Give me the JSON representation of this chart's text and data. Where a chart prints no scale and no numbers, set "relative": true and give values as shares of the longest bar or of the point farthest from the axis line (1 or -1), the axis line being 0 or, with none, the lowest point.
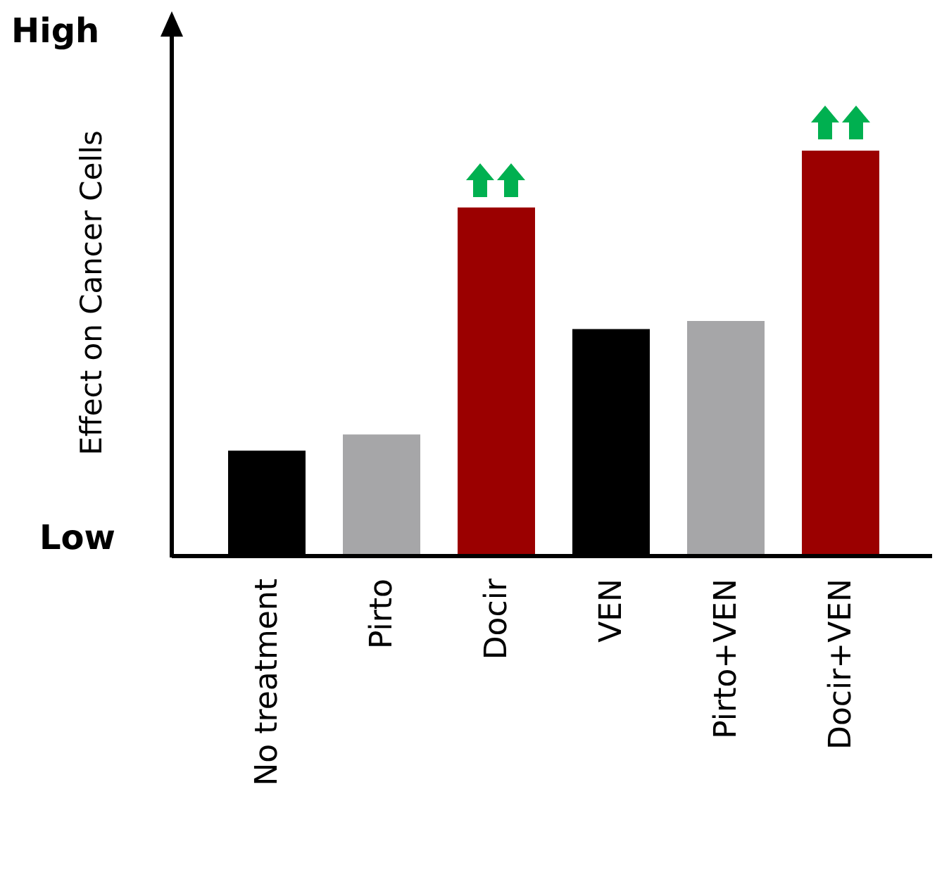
{
  "chart_data": {
    "type": "bar",
    "relative": true,
    "ylabel": "Effect on Cancer Cells",
    "categories": [
      "No treatment",
      "Pirto",
      "Docir",
      "VEN",
      "Pirto+VEN",
      "Docir+VEN"
    ],
    "values": [
      0.26,
      0.3,
      0.86,
      0.56,
      0.58,
      1
    ],
    "colors": [
      "#000000",
      "#a6a6a8",
      "#9b0000",
      "#000000",
      "#a6a6a8",
      "#9b0000"
    ],
    "annotations": [
      "High",
      "Low"
    ]
  }
}
